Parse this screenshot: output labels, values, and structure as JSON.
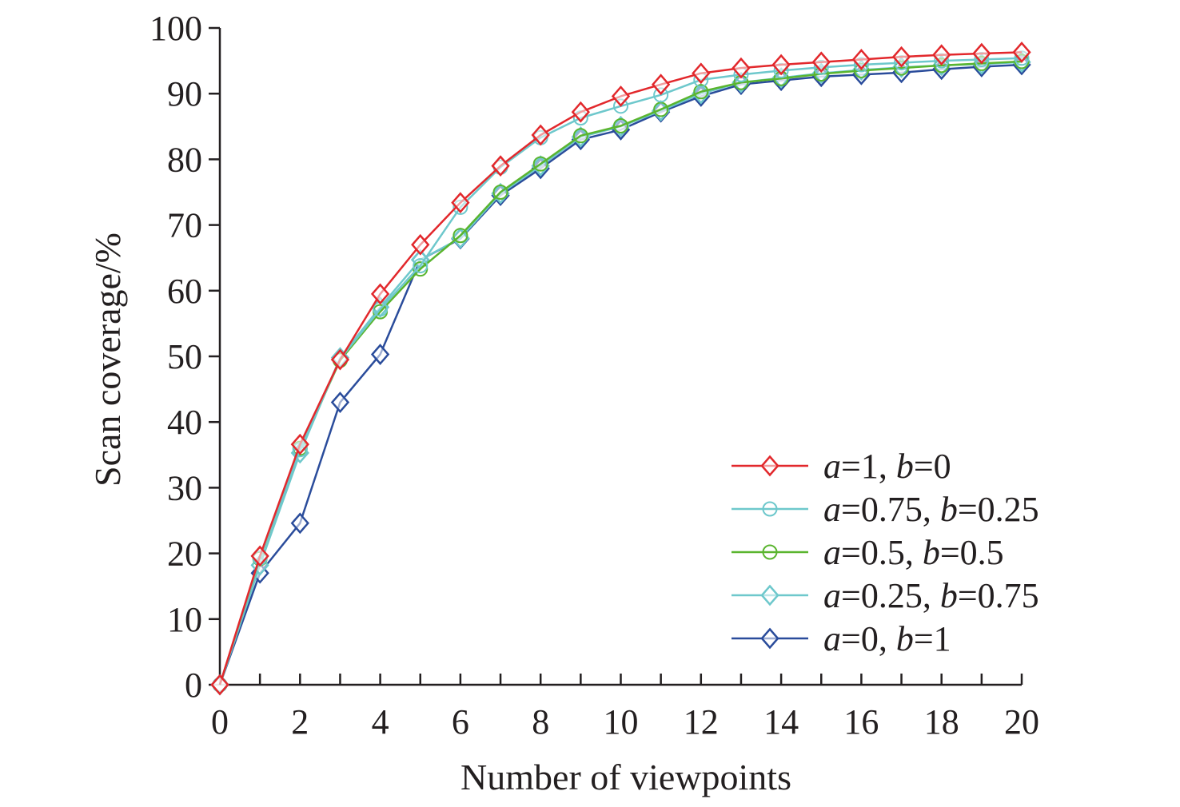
{
  "chart_data": {
    "type": "line",
    "title": "",
    "xlabel": "Number of viewpoints",
    "ylabel": "Scan coverage/%",
    "xlim": [
      0,
      20
    ],
    "ylim": [
      0,
      100
    ],
    "xticks": [
      0,
      2,
      4,
      6,
      8,
      10,
      12,
      14,
      16,
      18,
      20
    ],
    "yticks": [
      0,
      10,
      20,
      30,
      40,
      50,
      60,
      70,
      80,
      90,
      100
    ],
    "grid": false,
    "legend_position": "bottom-right",
    "x": [
      0,
      1,
      2,
      3,
      4,
      5,
      6,
      7,
      8,
      9,
      10,
      11,
      12,
      13,
      14,
      15,
      16,
      17,
      18,
      19,
      20
    ],
    "series": [
      {
        "name": "a=1, b=0",
        "a": "1",
        "b": "0",
        "color": "#e2282c",
        "marker": "diamond",
        "values": [
          0,
          19.6,
          36.6,
          49.5,
          59.5,
          67,
          73.4,
          79,
          83.7,
          87.2,
          89.6,
          91.4,
          93.1,
          93.9,
          94.4,
          94.8,
          95.2,
          95.6,
          95.9,
          96.1,
          96.3
        ]
      },
      {
        "name": "a=0.75, b=0.25",
        "a": "0.75",
        "b": "0.25",
        "color": "#6ec8cc",
        "marker": "circle",
        "values": [
          0,
          19.3,
          35.8,
          49.6,
          57.2,
          63.8,
          72.7,
          78.8,
          83.3,
          86.3,
          88.1,
          89.8,
          92.1,
          92.9,
          93.5,
          94,
          94.4,
          94.7,
          95,
          95.2,
          95.4
        ]
      },
      {
        "name": "a=0.5, b=0.5",
        "a": "0.5",
        "b": "0.5",
        "color": "#5ab52f",
        "marker": "circle",
        "values": [
          0,
          19.2,
          36,
          49.4,
          56.8,
          63.3,
          68.4,
          75,
          79.3,
          83.6,
          85.1,
          87.6,
          90.3,
          91.7,
          92.3,
          93,
          93.5,
          93.9,
          94.3,
          94.6,
          94.9
        ]
      },
      {
        "name": "a=0.25, b=0.75",
        "a": "0.25",
        "b": "0.75",
        "color": "#6ec8cc",
        "marker": "diamond",
        "values": [
          0,
          18.2,
          35.3,
          49.8,
          57.5,
          64.7,
          68,
          74.8,
          79,
          83.4,
          85,
          87.4,
          90,
          91.7,
          92.4,
          93.1,
          93.6,
          94,
          94.3,
          94.5,
          94.8
        ]
      },
      {
        "name": "a=0, b=1",
        "a": "0",
        "b": "1",
        "color": "#2a4c9b",
        "marker": "diamond",
        "values": [
          0,
          17,
          24.6,
          43,
          50.3,
          64.7,
          67.9,
          74.5,
          78.6,
          83,
          84.5,
          87.2,
          89.6,
          91.4,
          92,
          92.6,
          92.9,
          93.2,
          93.7,
          94.1,
          94.4
        ]
      }
    ]
  }
}
